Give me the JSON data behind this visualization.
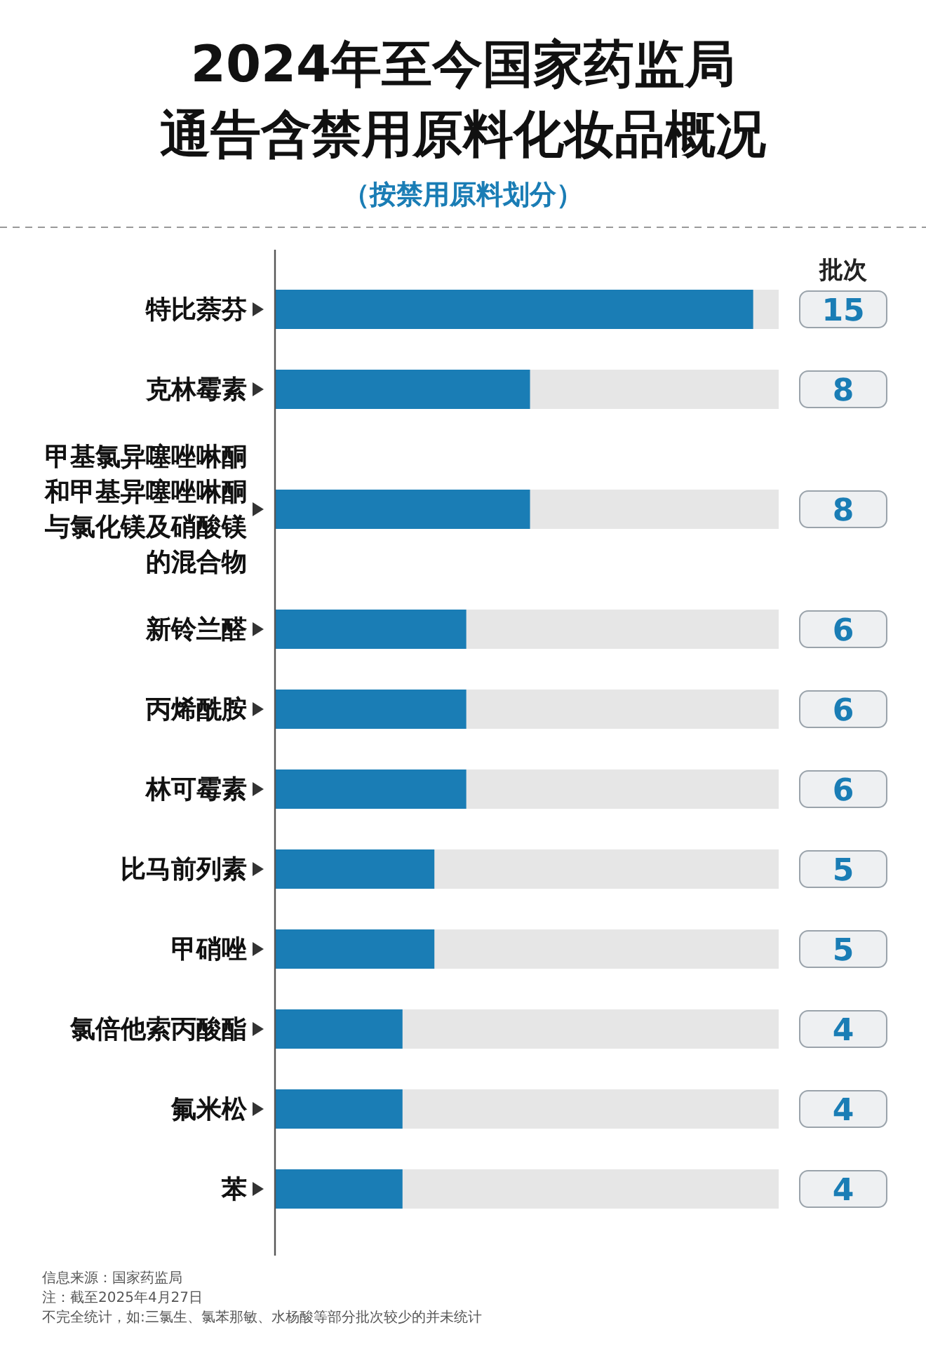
{
  "chart_data": {
    "type": "bar",
    "orientation": "horizontal",
    "title": "2024年至今国家药监局通告含禁用原料化妆品概况",
    "subtitle": "（按禁用原料划分）",
    "xlabel": "批次",
    "categories": [
      "特比萘芬",
      "克林霉素",
      "甲基氯异噻唑啉酮和甲基异噻唑啉酮与氯化镁及硝酸镁的混合物",
      "新铃兰醛",
      "丙烯酰胺",
      "林可霉素",
      "比马前列素",
      "甲硝唑",
      "氯倍他索丙酸酯",
      "氟米松",
      "苯"
    ],
    "values": [
      15,
      8,
      8,
      6,
      6,
      6,
      5,
      5,
      4,
      4,
      4
    ],
    "color": "#1a7db5",
    "xlim": [
      0,
      15.8
    ],
    "data_labels": true,
    "annotations": [
      "信息来源：国家药监局",
      "注：截至2025年4月27日",
      "不完全统计，如:三氯生、氯苯那敏、水杨酸等部分批次较少的并未统计"
    ]
  }
}
